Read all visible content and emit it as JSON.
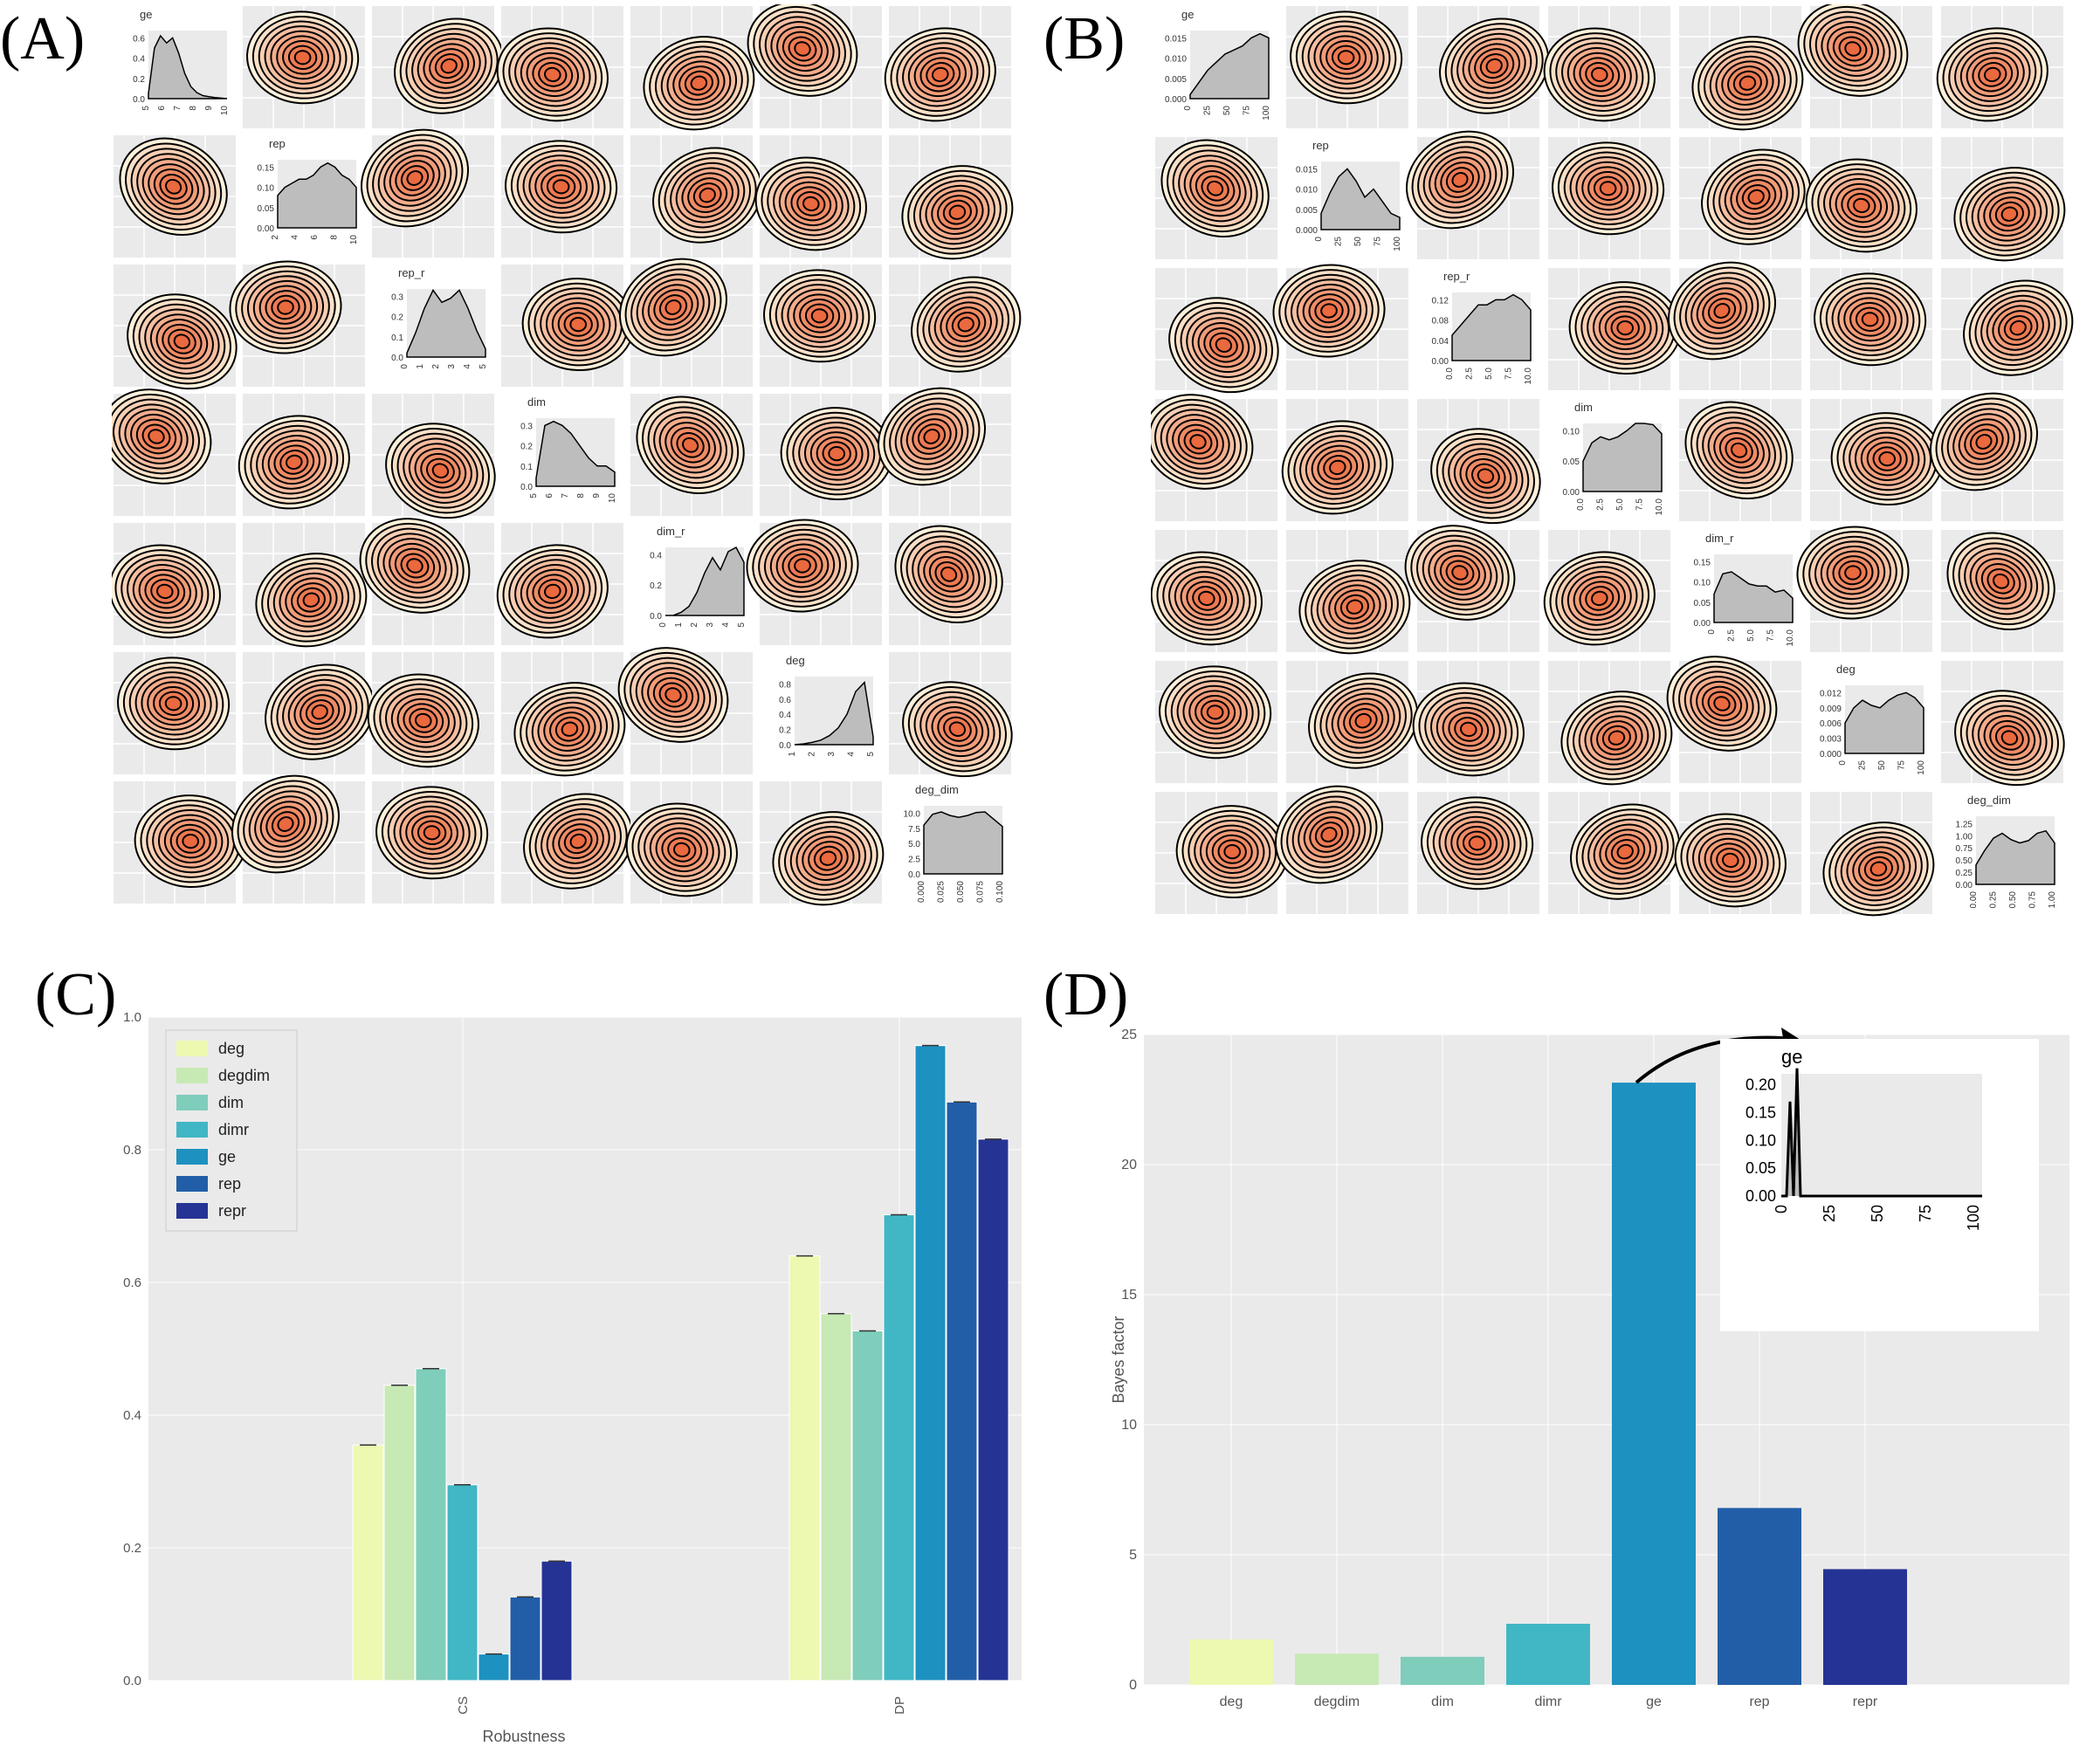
{
  "panel_labels": {
    "a": "(A)",
    "b": "(B)",
    "c": "(C)",
    "d": "(D)"
  },
  "colors": {
    "deg": "#edf8b1",
    "degdim": "#c7e9b4",
    "dim": "#7fcdbb",
    "dimr": "#41b6c4",
    "ge": "#1d91c0",
    "rep": "#225ea8",
    "repr": "#253494",
    "panel_bg": "#eaeaea",
    "density_fill": "#bdbdbd",
    "contour_hot": "#e8582a",
    "contour_cold": "#fdf1dc"
  },
  "chart_data": [
    {
      "panel": "A",
      "type": "pair-density-matrix",
      "variables": [
        "ge",
        "rep",
        "rep_r",
        "dim",
        "dim_r",
        "deg",
        "deg_dim"
      ],
      "diagonal": [
        {
          "name": "ge",
          "yticks": [
            "0.6",
            "0.4",
            "0.2",
            "0.0"
          ],
          "xticks": [
            "5",
            "6",
            "7",
            "8",
            "9",
            "10"
          ],
          "density": [
            0.05,
            0.5,
            0.62,
            0.55,
            0.6,
            0.45,
            0.25,
            0.12,
            0.06,
            0.03,
            0.02,
            0.01,
            0.005,
            0.0
          ]
        },
        {
          "name": "rep",
          "yticks": [
            "0.15",
            "0.10",
            "0.05",
            "0.00"
          ],
          "xticks": [
            "2",
            "4",
            "6",
            "8",
            "10"
          ],
          "density": [
            0.08,
            0.1,
            0.11,
            0.12,
            0.12,
            0.13,
            0.15,
            0.16,
            0.15,
            0.13,
            0.12,
            0.1
          ]
        },
        {
          "name": "rep_r",
          "yticks": [
            "0.3",
            "0.2",
            "0.1",
            "0.0"
          ],
          "xticks": [
            "0",
            "1",
            "2",
            "3",
            "4",
            "5"
          ],
          "density": [
            0.02,
            0.12,
            0.24,
            0.33,
            0.27,
            0.29,
            0.33,
            0.24,
            0.13,
            0.04
          ]
        },
        {
          "name": "dim",
          "yticks": [
            "0.3",
            "0.2",
            "0.1",
            "0.0"
          ],
          "xticks": [
            "5",
            "6",
            "7",
            "8",
            "9",
            "10"
          ],
          "density": [
            0.04,
            0.3,
            0.32,
            0.3,
            0.26,
            0.2,
            0.14,
            0.1,
            0.1,
            0.07
          ]
        },
        {
          "name": "dim_r",
          "yticks": [
            "0.4",
            "0.2",
            "0.0"
          ],
          "xticks": [
            "0",
            "1",
            "2",
            "3",
            "4",
            "5"
          ],
          "density": [
            0.0,
            0.0,
            0.02,
            0.06,
            0.15,
            0.28,
            0.38,
            0.3,
            0.42,
            0.52,
            0.35
          ]
        },
        {
          "name": "deg",
          "yticks": [
            "0.8",
            "0.6",
            "0.4",
            "0.2",
            "0.0"
          ],
          "xticks": [
            "1",
            "2",
            "3",
            "4",
            "5"
          ],
          "density": [
            0.0,
            0.01,
            0.03,
            0.06,
            0.12,
            0.22,
            0.4,
            0.7,
            0.82,
            0.1
          ]
        },
        {
          "name": "deg_dim",
          "yticks": [
            "10.0",
            "7.5",
            "5.0",
            "2.5",
            "0.0"
          ],
          "xticks": [
            "0.000",
            "0.025",
            "0.050",
            "0.075",
            "0.100"
          ],
          "density": [
            8.0,
            9.8,
            10.2,
            9.6,
            9.3,
            9.6,
            10.1,
            10.2,
            9.0,
            7.8
          ]
        }
      ]
    },
    {
      "panel": "B",
      "type": "pair-density-matrix",
      "variables": [
        "ge",
        "rep",
        "rep_r",
        "dim",
        "dim_r",
        "deg",
        "deg_dim"
      ],
      "diagonal": [
        {
          "name": "ge",
          "yticks": [
            "0.015",
            "0.010",
            "0.005",
            "0.000"
          ],
          "xticks": [
            "0",
            "25",
            "50",
            "75",
            "100"
          ],
          "density": [
            0.001,
            0.004,
            0.007,
            0.009,
            0.011,
            0.012,
            0.013,
            0.015,
            0.016,
            0.015
          ]
        },
        {
          "name": "rep",
          "yticks": [
            "0.015",
            "0.010",
            "0.005",
            "0.000"
          ],
          "xticks": [
            "0",
            "25",
            "50",
            "75",
            "100"
          ],
          "density": [
            0.004,
            0.009,
            0.013,
            0.015,
            0.012,
            0.008,
            0.01,
            0.007,
            0.004,
            0.003
          ]
        },
        {
          "name": "rep_r",
          "yticks": [
            "0.12",
            "0.08",
            "0.04",
            "0.00"
          ],
          "xticks": [
            "0.0",
            "2.5",
            "5.0",
            "7.5",
            "10.0"
          ],
          "density": [
            0.05,
            0.07,
            0.09,
            0.11,
            0.11,
            0.12,
            0.12,
            0.13,
            0.12,
            0.1
          ]
        },
        {
          "name": "dim",
          "yticks": [
            "0.10",
            "0.05",
            "0.00"
          ],
          "xticks": [
            "0.0",
            "2.5",
            "5.0",
            "7.5",
            "10.0"
          ],
          "density": [
            0.05,
            0.08,
            0.09,
            0.085,
            0.09,
            0.1,
            0.115,
            0.12,
            0.11,
            0.095
          ]
        },
        {
          "name": "dim_r",
          "yticks": [
            "0.15",
            "0.10",
            "0.05",
            "0.00"
          ],
          "xticks": [
            "0",
            "2.5",
            "5.0",
            "7.5",
            "10.0"
          ],
          "density": [
            0.07,
            0.12,
            0.125,
            0.11,
            0.095,
            0.09,
            0.09,
            0.075,
            0.08,
            0.06
          ]
        },
        {
          "name": "deg",
          "yticks": [
            "0.012",
            "0.009",
            "0.006",
            "0.003",
            "0.000"
          ],
          "xticks": [
            "0",
            "25",
            "50",
            "75",
            "100"
          ],
          "density": [
            0.006,
            0.009,
            0.0105,
            0.0095,
            0.009,
            0.0105,
            0.0115,
            0.012,
            0.011,
            0.009
          ]
        },
        {
          "name": "deg_dim",
          "yticks": [
            "1.25",
            "1.00",
            "0.75",
            "0.50",
            "0.25",
            "0.00"
          ],
          "xticks": [
            "0.00",
            "0.25",
            "0.50",
            "0.75",
            "1.00"
          ],
          "density": [
            0.4,
            0.7,
            0.95,
            1.05,
            0.92,
            0.85,
            0.9,
            1.05,
            1.1,
            0.85
          ]
        }
      ]
    },
    {
      "panel": "C",
      "type": "bar",
      "categories": [
        "CS",
        "DP"
      ],
      "xlabel": "Robustness",
      "ylabel": "",
      "ylim": [
        0,
        1.0
      ],
      "yticks": [
        "0.0",
        "0.2",
        "0.4",
        "0.6",
        "0.8",
        "1.0"
      ],
      "legend_position": "top-left",
      "series": [
        {
          "name": "deg",
          "values": [
            0.355,
            0.64
          ]
        },
        {
          "name": "degdim",
          "values": [
            0.445,
            0.553
          ]
        },
        {
          "name": "dim",
          "values": [
            0.47,
            0.527
          ]
        },
        {
          "name": "dimr",
          "values": [
            0.295,
            0.702
          ]
        },
        {
          "name": "ge",
          "values": [
            0.04,
            0.957
          ]
        },
        {
          "name": "rep",
          "values": [
            0.126,
            0.872
          ]
        },
        {
          "name": "repr",
          "values": [
            0.18,
            0.816
          ]
        }
      ]
    },
    {
      "panel": "D",
      "type": "bar",
      "categories": [
        "deg",
        "degdim",
        "dim",
        "dimr",
        "ge",
        "rep",
        "repr"
      ],
      "values": [
        1.75,
        1.2,
        1.08,
        2.35,
        23.15,
        6.8,
        4.45
      ],
      "ylabel": "Bayes factor",
      "ylim": [
        0,
        25
      ],
      "yticks": [
        "0",
        "5",
        "10",
        "15",
        "20",
        "25"
      ],
      "inset": {
        "title": "ge",
        "yticks": [
          "0.20",
          "0.15",
          "0.10",
          "0.05",
          "0.00"
        ],
        "xticks": [
          "0",
          "25",
          "50",
          "75",
          "100"
        ],
        "density": [
          0.0,
          0.17,
          0.0,
          0.23,
          0.0,
          0.0,
          0.0,
          0.0,
          0.0,
          0.0,
          0.0,
          0.0
        ]
      }
    }
  ]
}
